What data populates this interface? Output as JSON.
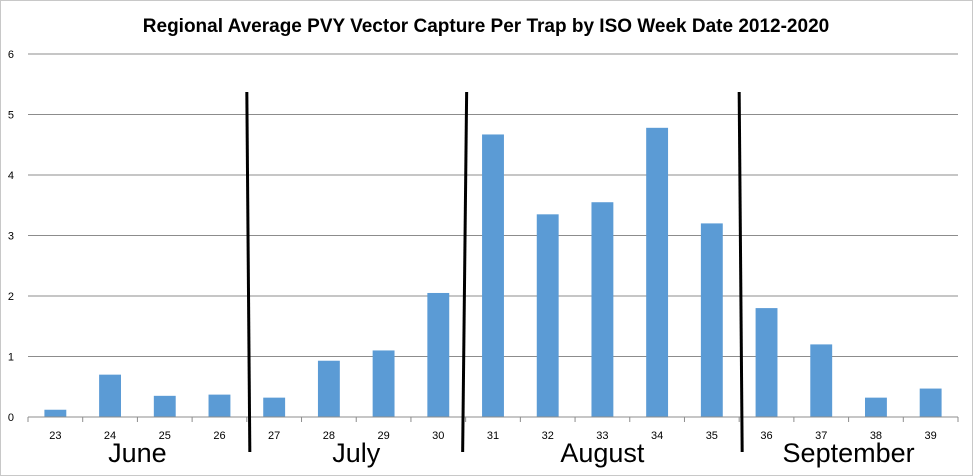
{
  "chart_data": {
    "type": "bar",
    "title": "Regional Average PVY Vector Capture Per Trap by ISO Week Date 2012-2020",
    "xlabel": "",
    "ylabel": "",
    "ylim": [
      0,
      6
    ],
    "yticks": [
      "0",
      "1",
      "2",
      "3",
      "4",
      "5",
      "6"
    ],
    "grid": true,
    "categories": [
      "23",
      "24",
      "25",
      "26",
      "27",
      "28",
      "29",
      "30",
      "31",
      "32",
      "33",
      "34",
      "35",
      "36",
      "37",
      "38",
      "39"
    ],
    "values": [
      0.12,
      0.7,
      0.35,
      0.37,
      0.32,
      0.93,
      1.1,
      2.05,
      4.67,
      3.35,
      3.55,
      4.78,
      3.2,
      1.8,
      1.2,
      0.32,
      0.47
    ],
    "bar_color": "#5b9bd5",
    "month_labels": [
      "June",
      "July",
      "August",
      "September"
    ],
    "month_dividers_after_week": [
      "26",
      "30",
      "35"
    ]
  }
}
